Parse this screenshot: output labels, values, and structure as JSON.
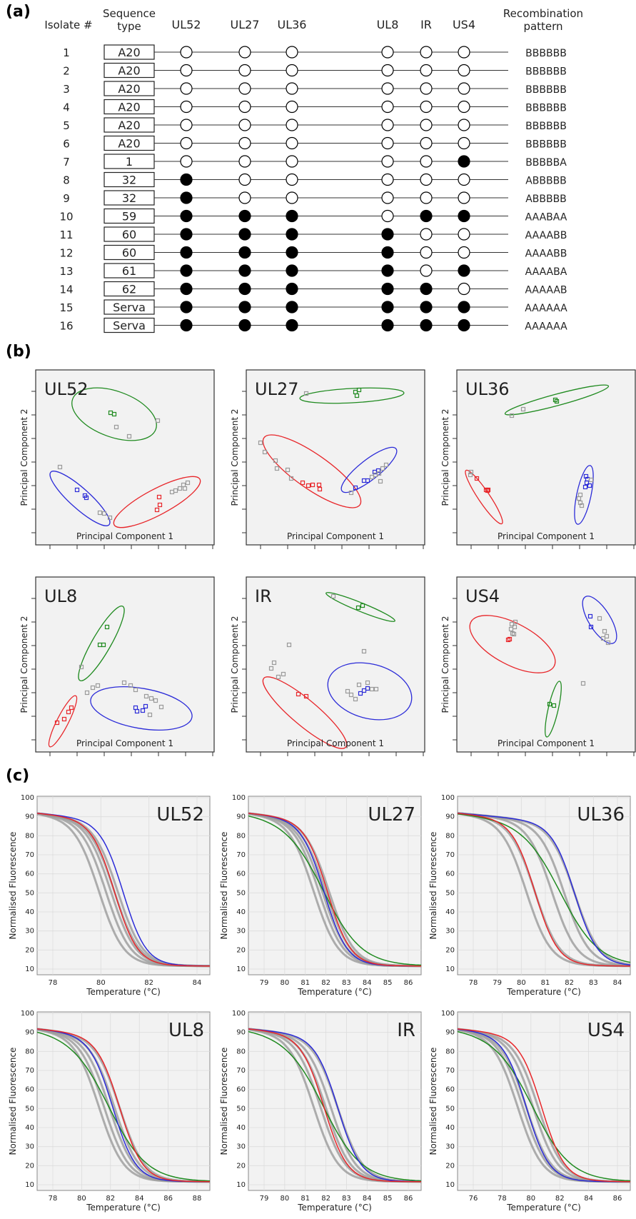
{
  "panels": {
    "a": "(a)",
    "b": "(b)",
    "c": "(c)"
  },
  "table": {
    "headers": {
      "isolate": "Isolate #",
      "sequence_type": [
        "Sequence",
        "type"
      ],
      "loci": [
        "UL52",
        "UL27",
        "UL36",
        "UL8",
        "IR",
        "US4"
      ],
      "recombination": [
        "Recombination",
        "pattern"
      ]
    },
    "rows": [
      {
        "isolate": "1",
        "type": "A20",
        "pattern": "BBBBBB",
        "alleles": "BBBBBB"
      },
      {
        "isolate": "2",
        "type": "A20",
        "pattern": "BBBBBB",
        "alleles": "BBBBBB"
      },
      {
        "isolate": "3",
        "type": "A20",
        "pattern": "BBBBBB",
        "alleles": "BBBBBB"
      },
      {
        "isolate": "4",
        "type": "A20",
        "pattern": "BBBBBB",
        "alleles": "BBBBBB"
      },
      {
        "isolate": "5",
        "type": "A20",
        "pattern": "BBBBBB",
        "alleles": "BBBBBB"
      },
      {
        "isolate": "6",
        "type": "A20",
        "pattern": "BBBBBB",
        "alleles": "BBBBBB"
      },
      {
        "isolate": "7",
        "type": "1",
        "pattern": "BBBBBA",
        "alleles": "BBBBBA"
      },
      {
        "isolate": "8",
        "type": "32",
        "pattern": "ABBBBB",
        "alleles": "ABBBBB"
      },
      {
        "isolate": "9",
        "type": "32",
        "pattern": "ABBBBB",
        "alleles": "ABBBBB"
      },
      {
        "isolate": "10",
        "type": "59",
        "pattern": "AAABAA",
        "alleles": "AAABAA"
      },
      {
        "isolate": "11",
        "type": "60",
        "pattern": "AAAABB",
        "alleles": "AAAABB"
      },
      {
        "isolate": "12",
        "type": "60",
        "pattern": "AAAABB",
        "alleles": "AAAABB"
      },
      {
        "isolate": "13",
        "type": "61",
        "pattern": "AAAABA",
        "alleles": "AAAABA"
      },
      {
        "isolate": "14",
        "type": "62",
        "pattern": "AAAAAB",
        "alleles": "AAAAAB"
      },
      {
        "isolate": "15",
        "type": "Serva",
        "pattern": "AAAAAA",
        "alleles": "AAAAAA"
      },
      {
        "isolate": "16",
        "type": "Serva",
        "pattern": "AAAAAA",
        "alleles": "AAAAAA"
      }
    ]
  },
  "pca": {
    "xlabel": "Principal Component 1",
    "ylabel": "Principal Component 2",
    "plots": [
      {
        "title": "UL52"
      },
      {
        "title": "UL27"
      },
      {
        "title": "UL36"
      },
      {
        "title": "UL8"
      },
      {
        "title": "IR"
      },
      {
        "title": "US4"
      }
    ]
  },
  "melt": {
    "xlabel": "Temperature (°C)",
    "ylabel": "Normalised Fluorescence",
    "plots": [
      {
        "title": "UL52",
        "xticks": [
          "78",
          "80",
          "82",
          "84"
        ],
        "yticks": [
          "10",
          "20",
          "30",
          "40",
          "50",
          "60",
          "70",
          "80",
          "90",
          "100"
        ]
      },
      {
        "title": "UL27",
        "xticks": [
          "79",
          "80",
          "81",
          "82",
          "83",
          "84",
          "85",
          "86"
        ],
        "yticks": [
          "10",
          "20",
          "30",
          "40",
          "50",
          "60",
          "70",
          "80",
          "90",
          "100"
        ]
      },
      {
        "title": "UL36",
        "xticks": [
          "78",
          "79",
          "80",
          "81",
          "82",
          "83",
          "84"
        ],
        "yticks": [
          "10",
          "20",
          "30",
          "40",
          "50",
          "60",
          "70",
          "80",
          "90",
          "100"
        ]
      },
      {
        "title": "UL8",
        "xticks": [
          "78",
          "80",
          "82",
          "84",
          "86",
          "88"
        ],
        "yticks": [
          "10",
          "20",
          "30",
          "40",
          "50",
          "60",
          "70",
          "80",
          "90",
          "100"
        ]
      },
      {
        "title": "IR",
        "xticks": [
          "79",
          "80",
          "81",
          "82",
          "83",
          "84",
          "85",
          "86"
        ],
        "yticks": [
          "10",
          "20",
          "30",
          "40",
          "50",
          "60",
          "70",
          "80",
          "90",
          "100"
        ]
      },
      {
        "title": "US4",
        "xticks": [
          "76",
          "78",
          "80",
          "82",
          "84",
          "86"
        ],
        "yticks": [
          "10",
          "20",
          "30",
          "40",
          "50",
          "60",
          "70",
          "80",
          "90",
          "100"
        ]
      }
    ]
  },
  "colors": {
    "red": "#e8262a",
    "blue": "#2b2bd8",
    "green": "#1f8a1f",
    "grey": "#9a9a9a",
    "plot_bg": "#f2f2f2",
    "grid": "#dcdcdc"
  }
}
